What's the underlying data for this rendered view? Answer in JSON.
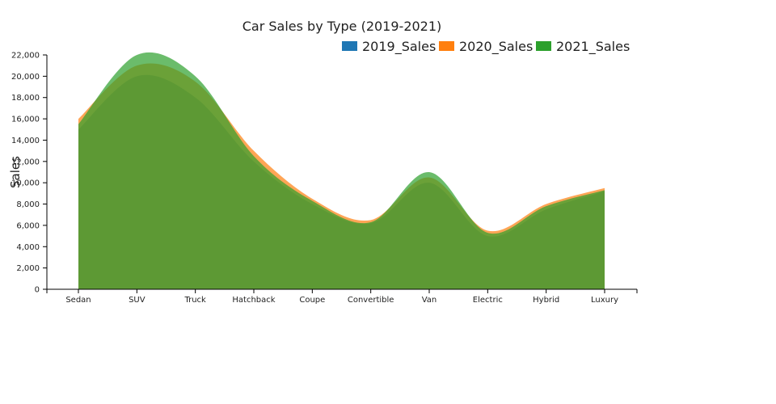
{
  "chart_data": {
    "type": "area",
    "title": "Car Sales by Type (2019-2021)",
    "xlabel": "",
    "ylabel": "Sales",
    "categories": [
      "Sedan",
      "SUV",
      "Truck",
      "Hatchback",
      "Coupe",
      "Convertible",
      "Van",
      "Electric",
      "Hybrid",
      "Luxury"
    ],
    "ylim": [
      0,
      22000
    ],
    "yticks": [
      0,
      2000,
      4000,
      6000,
      8000,
      10000,
      12000,
      14000,
      16000,
      18000,
      20000,
      22000
    ],
    "ytick_labels": [
      "0",
      "2,000",
      "4,000",
      "6,000",
      "8,000",
      "10,000",
      "12,000",
      "14,000",
      "16,000",
      "18,000",
      "20,000",
      "22,000"
    ],
    "legend_position": "top-right",
    "grid": false,
    "series": [
      {
        "name": "2019_Sales",
        "color": "#1f77b4",
        "values": [
          15000,
          20000,
          18000,
          12000,
          8000,
          6200,
          10000,
          5000,
          7500,
          9200
        ]
      },
      {
        "name": "2020_Sales",
        "color": "#ff7f0e",
        "values": [
          16000,
          21000,
          19500,
          13000,
          8500,
          6500,
          10500,
          5500,
          8000,
          9500
        ]
      },
      {
        "name": "2021_Sales",
        "color": "#2ca02c",
        "values": [
          15500,
          22000,
          20000,
          12500,
          8300,
          6300,
          11000,
          5300,
          7800,
          9300
        ]
      }
    ]
  }
}
